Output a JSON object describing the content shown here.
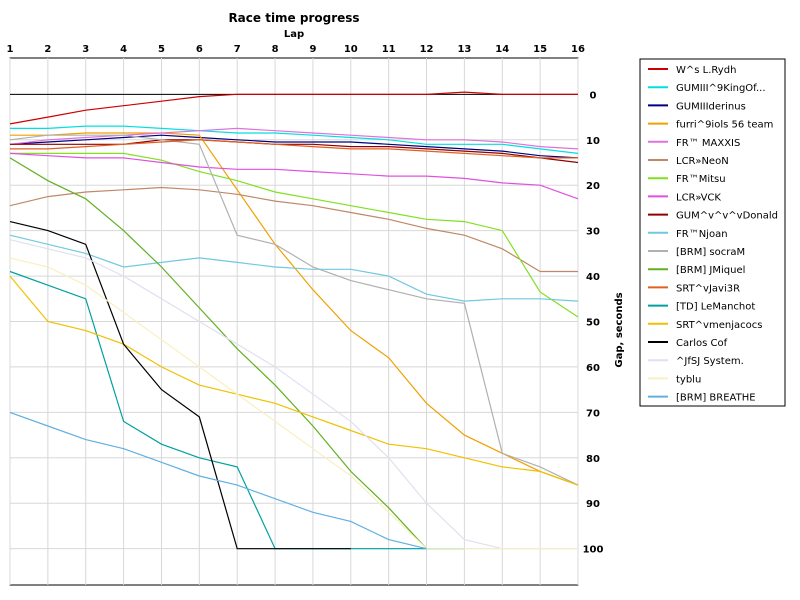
{
  "chart_data": {
    "type": "line",
    "title": "Race time progress",
    "xlabel": "Lap",
    "ylabel": "Gap, seconds",
    "x": [
      1,
      2,
      3,
      4,
      5,
      6,
      7,
      8,
      9,
      10,
      11,
      12,
      13,
      14,
      15,
      16
    ],
    "xlim": [
      1,
      16
    ],
    "ylim": [
      -8,
      108
    ],
    "y_ticks": [
      0,
      10,
      20,
      30,
      40,
      50,
      60,
      70,
      80,
      90,
      100
    ],
    "y_inverted": true,
    "grid": true,
    "legend_position": "right",
    "series": [
      {
        "name": "W^s L.Rydh",
        "color": "#cc0000",
        "values": [
          6.5,
          5,
          3.5,
          2.5,
          1.5,
          0.5,
          0,
          0,
          0,
          0,
          0,
          0,
          -0.5,
          0,
          0,
          0
        ]
      },
      {
        "name": "GUMIII^9KingOf...",
        "color": "#00e0e0",
        "values": [
          7.5,
          7.5,
          7,
          7,
          7.5,
          8,
          8.5,
          8.5,
          9,
          9.5,
          10,
          11,
          11,
          11,
          12,
          13
        ]
      },
      {
        "name": "GUMIIIderinus",
        "color": "#000080",
        "values": [
          11,
          10.5,
          10,
          9.5,
          9,
          9.5,
          10,
          10.5,
          10.5,
          10.5,
          11,
          11.5,
          12,
          12.5,
          13.5,
          14
        ]
      },
      {
        "name": "furri^9iols 56 team",
        "color": "#f0a000",
        "values": [
          9,
          9,
          8.5,
          8.5,
          8.5,
          9,
          21,
          33,
          43,
          52,
          58,
          68,
          75,
          79,
          83,
          86
        ]
      },
      {
        "name": "FR™ MAXXIS",
        "color": "#e070e0",
        "values": [
          11,
          10,
          9.5,
          9,
          8.5,
          8,
          7.5,
          8,
          8.5,
          9,
          9.5,
          10,
          10,
          10.5,
          11.5,
          12
        ]
      },
      {
        "name": "LCR»NeoN",
        "color": "#c08868",
        "values": [
          24.5,
          22.5,
          21.5,
          21,
          20.5,
          21,
          22,
          23.5,
          24.5,
          26,
          27.5,
          29.5,
          31,
          34,
          39,
          39
        ]
      },
      {
        "name": "FR™Mitsu",
        "color": "#80e020",
        "values": [
          13,
          13,
          13,
          13,
          14.5,
          17,
          19,
          21.5,
          23,
          24.5,
          26,
          27.5,
          28,
          30,
          43.5,
          49
        ]
      },
      {
        "name": "LCR»VCK",
        "color": "#e050e0",
        "values": [
          13,
          13.5,
          14,
          14,
          15,
          16,
          16.5,
          16.5,
          17,
          17.5,
          18,
          18,
          18.5,
          19.5,
          20,
          23
        ]
      },
      {
        "name": "GUM^v^v^vDonald",
        "color": "#900000",
        "values": [
          11,
          11,
          11,
          11,
          10,
          10,
          10.5,
          11,
          11,
          11.5,
          11.5,
          12,
          12.5,
          13,
          14,
          15
        ]
      },
      {
        "name": "FR™Njoan",
        "color": "#70c8e0",
        "values": [
          31,
          33,
          35,
          38,
          37,
          36,
          37,
          38,
          38.5,
          38.5,
          40,
          44,
          45.5,
          45,
          45,
          45.5
        ]
      },
      {
        "name": "[BRM] socraM",
        "color": "#b0b0b0",
        "values": [
          10,
          9,
          9,
          9,
          10,
          11,
          31,
          33,
          38,
          41,
          43,
          45,
          46,
          79,
          82,
          86
        ]
      },
      {
        "name": "[BRM] JMiquel",
        "color": "#60b020",
        "values": [
          14,
          19,
          23,
          30,
          38,
          47,
          56,
          64,
          73,
          83,
          91,
          100,
          null,
          null,
          null,
          null
        ]
      },
      {
        "name": "SRT^vJavi3R",
        "color": "#e06020",
        "values": [
          12,
          12,
          11.5,
          11,
          10.5,
          10,
          10.5,
          11,
          11.5,
          12,
          12,
          12.5,
          13,
          13.5,
          14,
          14
        ]
      },
      {
        "name": "[TD] LeManchot",
        "color": "#00a0a0",
        "values": [
          39,
          42,
          45,
          72,
          77,
          80,
          82,
          100,
          100,
          100,
          100,
          100,
          100,
          null,
          null,
          null
        ]
      },
      {
        "name": "SRT^vmenjacocs",
        "color": "#f0c000",
        "values": [
          40,
          50,
          52,
          55,
          60,
          64,
          66,
          68,
          71,
          74,
          77,
          78,
          80,
          82,
          83,
          86
        ]
      },
      {
        "name": "Carlos Cof",
        "color": "#000000",
        "values": [
          28,
          30,
          33,
          55,
          65,
          71,
          100,
          100,
          100,
          100,
          null,
          null,
          null,
          null,
          null,
          null
        ]
      },
      {
        "name": "^JfSJ System.",
        "color": "#e0e0f0",
        "values": [
          32,
          34,
          36,
          40,
          45,
          50,
          55,
          60,
          66,
          72,
          80,
          90,
          98,
          100,
          100,
          100
        ]
      },
      {
        "name": "tyblu",
        "color": "#f8f0c0",
        "values": [
          36,
          38,
          42,
          48,
          54,
          60,
          66,
          72,
          78,
          84,
          92,
          100,
          100,
          100,
          100,
          100
        ]
      },
      {
        "name": "[BRM] BREATHE",
        "color": "#60b0e0",
        "values": [
          70,
          73,
          76,
          78,
          81,
          84,
          86,
          89,
          92,
          94,
          98,
          100,
          null,
          null,
          null,
          null
        ]
      }
    ]
  }
}
